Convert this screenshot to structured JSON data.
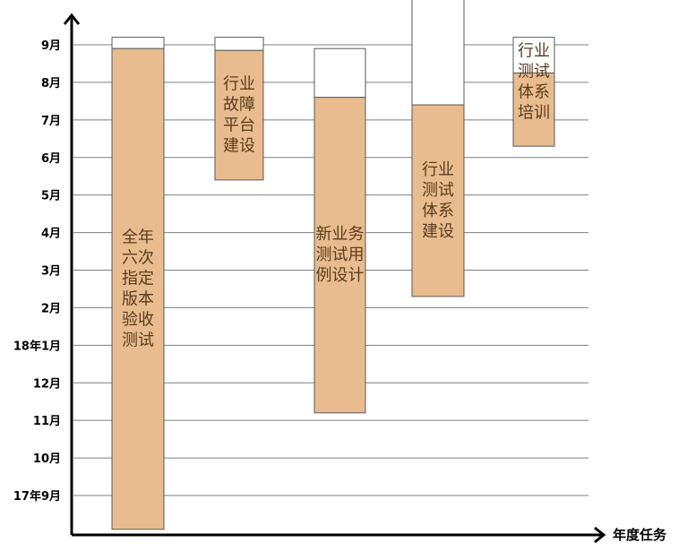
{
  "chart_data": {
    "type": "bar",
    "xlabel": "年度任务",
    "ylabel": "",
    "y_ticks": [
      "17年9月",
      "10月",
      "11月",
      "12月",
      "18年1月",
      "2月",
      "3月",
      "4月",
      "5月",
      "6月",
      "7月",
      "8月",
      "9月"
    ],
    "ylim": [
      -0.9,
      13.1
    ],
    "grid": true,
    "colors": {
      "done": "#e8bc8e",
      "remaining": "#ffffff",
      "border": "#595959",
      "grid": "#7f7f7f"
    },
    "tasks": [
      {
        "label_lines": [
          "全年",
          "六次",
          "指定",
          "版本",
          "验收",
          "测试"
        ],
        "start": -0.9,
        "progress": 11.9,
        "end": 12.2
      },
      {
        "label_lines": [
          "行业",
          "故障",
          "平台",
          "建设"
        ],
        "start": 8.4,
        "progress": 11.85,
        "end": 12.2
      },
      {
        "label_lines": [
          "新业务",
          "测试用",
          "例设计"
        ],
        "start": 2.2,
        "progress": 10.6,
        "end": 11.9
      },
      {
        "label_lines": [
          "行业",
          "测试",
          "体系",
          "建设"
        ],
        "start": 5.3,
        "progress": 10.4,
        "end": 13.5
      },
      {
        "label_lines": [
          "行业",
          "测试",
          "体系",
          "培训"
        ],
        "start": 9.3,
        "progress": 11.25,
        "end": 12.2
      }
    ]
  }
}
